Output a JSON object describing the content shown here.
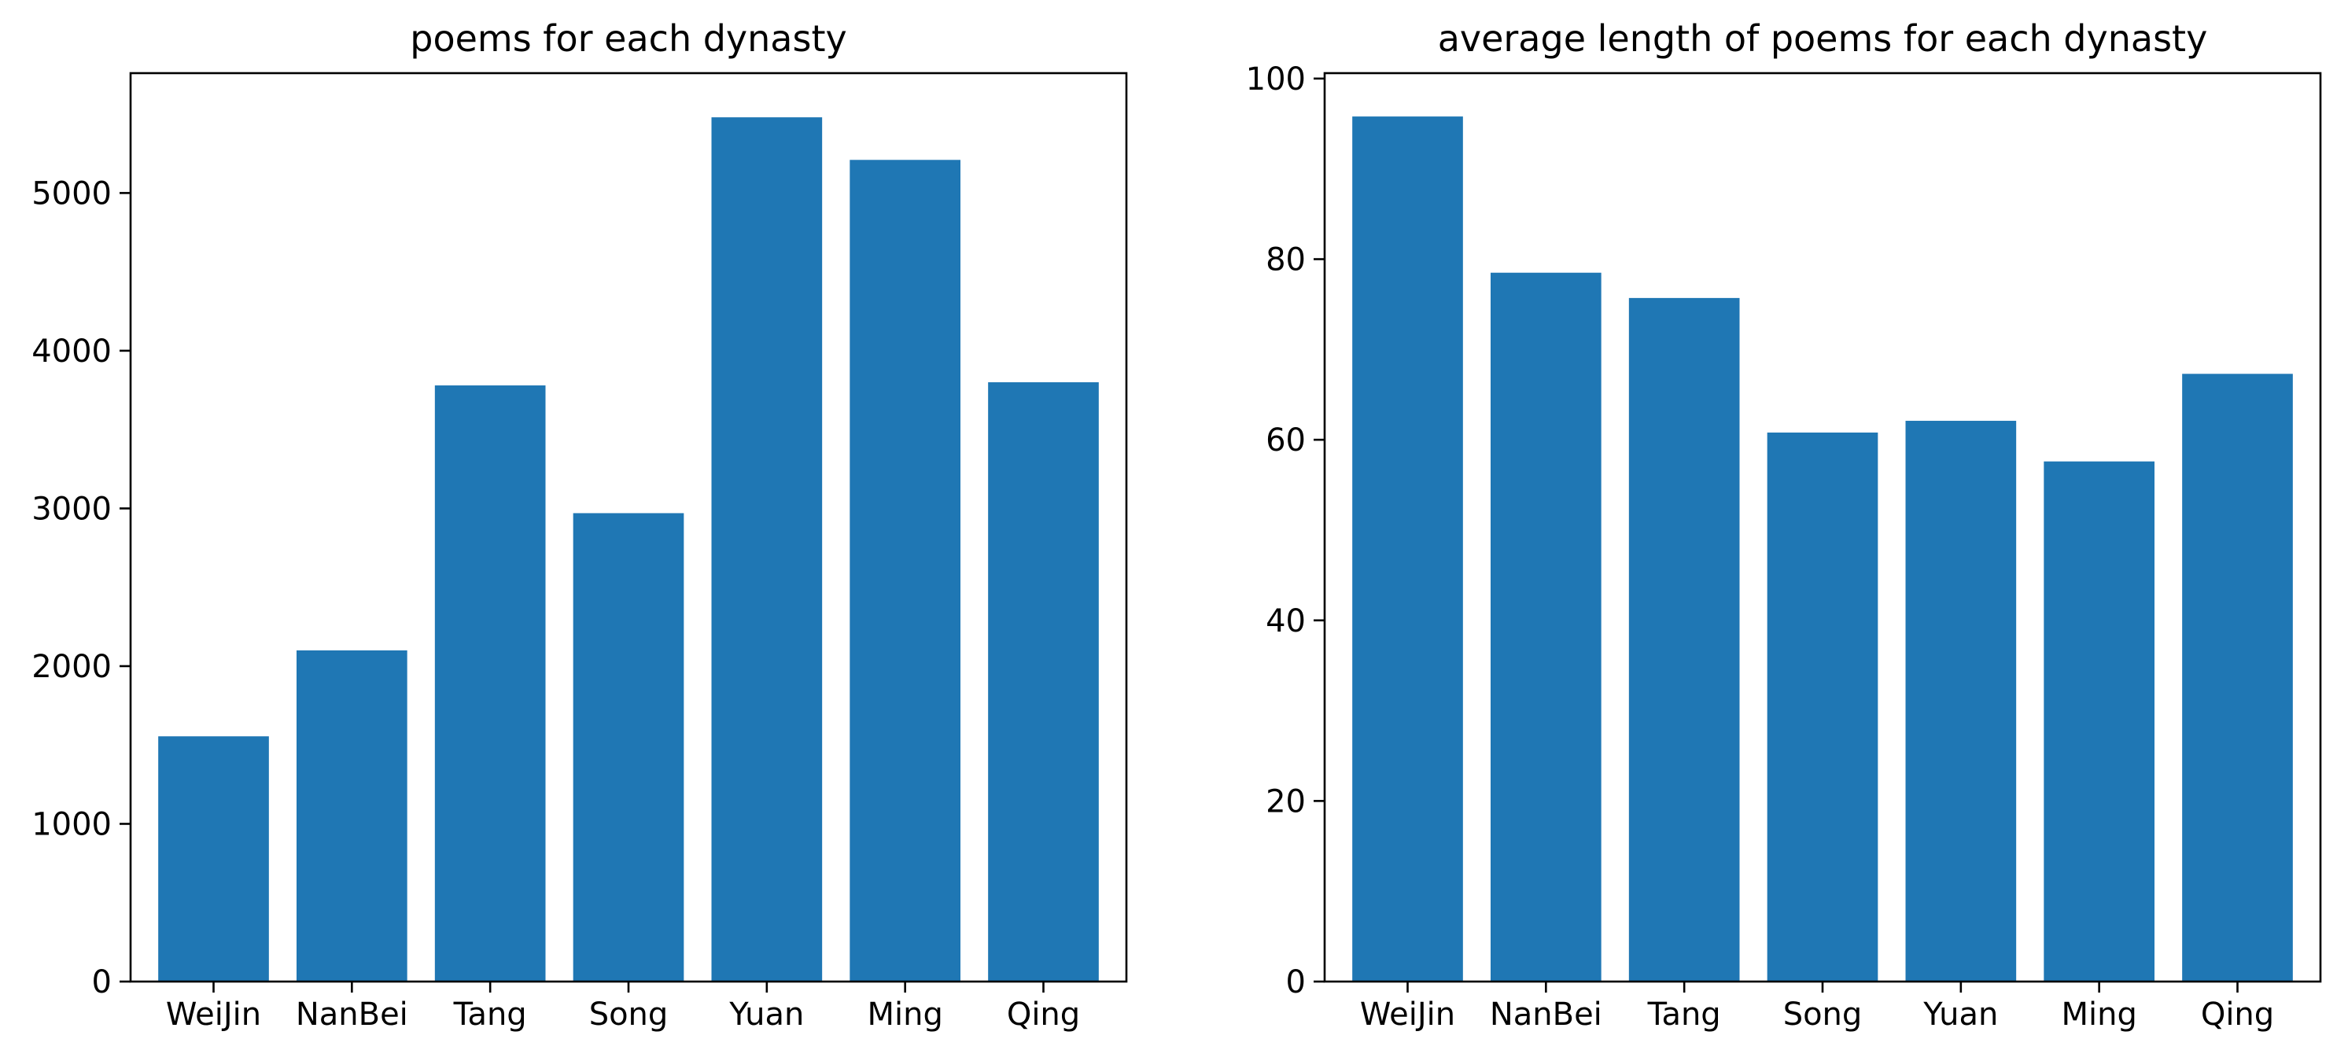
{
  "chart_data": [
    {
      "type": "bar",
      "title": "poems for each dynasty",
      "xlabel": "",
      "ylabel": "",
      "categories": [
        "WeiJin",
        "NanBei",
        "Tang",
        "Song",
        "Yuan",
        "Ming",
        "Qing"
      ],
      "values": [
        1555,
        2100,
        3780,
        2970,
        5480,
        5210,
        3800
      ],
      "ylim": [
        0,
        5760
      ],
      "yticks": [
        0,
        1000,
        2000,
        3000,
        4000,
        5000
      ],
      "grid": false,
      "color": "#1f77b4"
    },
    {
      "type": "bar",
      "title": "average length of poems for each dynasty",
      "xlabel": "",
      "ylabel": "",
      "categories": [
        "WeiJin",
        "NanBei",
        "Tang",
        "Song",
        "Yuan",
        "Ming",
        "Qing"
      ],
      "values": [
        95.8,
        78.5,
        75.7,
        60.8,
        62.1,
        57.6,
        67.3
      ],
      "ylim": [
        0,
        100.6
      ],
      "yticks": [
        0,
        20,
        40,
        60,
        80,
        100
      ],
      "grid": false,
      "color": "#1f77b4"
    }
  ]
}
